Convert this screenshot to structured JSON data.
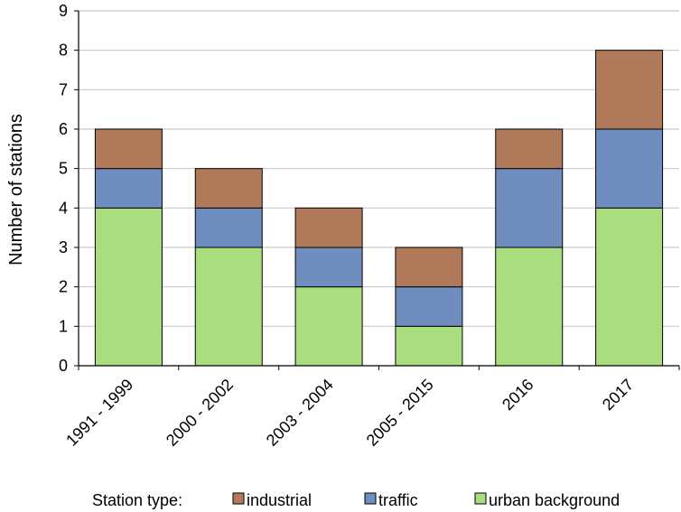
{
  "chart_data": {
    "type": "bar",
    "stacked": true,
    "categories": [
      "1991 - 1999",
      "2000 - 2002",
      "2003 - 2004",
      "2005 - 2015",
      "2016",
      "2017"
    ],
    "series": [
      {
        "name": "urban background",
        "values": [
          4,
          3,
          2,
          1,
          3,
          4
        ],
        "color": "#a9dd7f"
      },
      {
        "name": "traffic",
        "values": [
          1,
          1,
          1,
          1,
          2,
          2
        ],
        "color": "#6f8ebf"
      },
      {
        "name": "industrial",
        "values": [
          1,
          1,
          1,
          1,
          1,
          2
        ],
        "color": "#b07a5a"
      }
    ],
    "title": "",
    "xlabel": "",
    "ylabel": "Number of stations",
    "ylim": [
      0,
      9
    ],
    "yticks": [
      0,
      1,
      2,
      3,
      4,
      5,
      6,
      7,
      8,
      9
    ],
    "grid": true,
    "grid_color": "#c9c9c9",
    "legend": {
      "title": "Station type:",
      "placement": "bottom",
      "order": [
        "industrial",
        "traffic",
        "urban background"
      ]
    }
  }
}
